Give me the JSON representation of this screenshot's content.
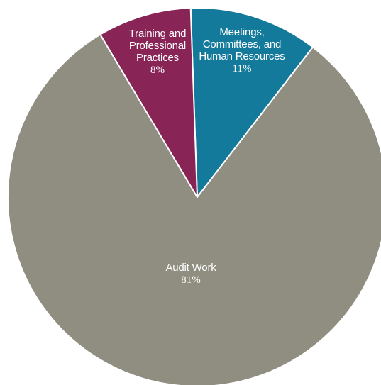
{
  "chart_data": {
    "type": "pie",
    "title": "",
    "legend": "none",
    "start_direction": "clockwise from top",
    "slices": [
      {
        "label_lines": [
          "Meetings,",
          "Committees, and",
          "Human Resources"
        ],
        "value": 11,
        "value_label": "11%",
        "color": "#137a9b"
      },
      {
        "label_lines": [
          "Audit Work"
        ],
        "value": 81,
        "value_label": "81%",
        "color": "#908e80"
      },
      {
        "label_lines": [
          "Training and",
          "Professional",
          "Practices"
        ],
        "value": 8,
        "value_label": "8%",
        "color": "#892457"
      }
    ]
  }
}
